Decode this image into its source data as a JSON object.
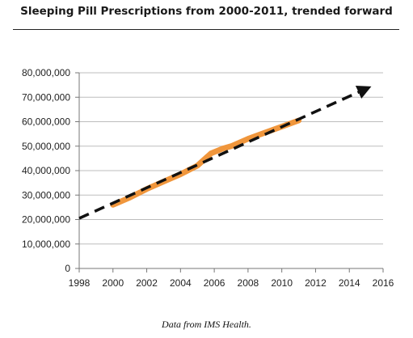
{
  "chart_data": {
    "type": "line",
    "title": "Sleeping Pill Prescriptions from 2000-2011, trended forward",
    "xlabel": "",
    "ylabel": "",
    "xlim": [
      1998,
      2016
    ],
    "ylim": [
      0,
      80000000
    ],
    "x_ticks": [
      1998,
      2000,
      2002,
      2004,
      2006,
      2008,
      2010,
      2012,
      2014,
      2016
    ],
    "y_ticks": [
      0,
      10000000,
      20000000,
      30000000,
      40000000,
      50000000,
      60000000,
      70000000,
      80000000
    ],
    "y_tick_labels": [
      "0",
      "10,000,000",
      "20,000,000",
      "30,000,000",
      "40,000,000",
      "50,000,000",
      "60,000,000",
      "70,000,000",
      "80,000,000"
    ],
    "grid": "horizontal",
    "series": [
      {
        "style": "solid",
        "color": "#f0963c",
        "x": [
          2000,
          2001,
          2002,
          2003,
          2004,
          2005,
          2005.8,
          2006.5,
          2007,
          2008,
          2009,
          2010,
          2011
        ],
        "y": [
          26000000,
          29000000,
          32500000,
          35500000,
          38500000,
          42000000,
          47000000,
          49000000,
          50000000,
          53000000,
          55500000,
          58000000,
          60500000
        ]
      },
      {
        "style": "dashed",
        "color": "#111111",
        "arrow": true,
        "x": [
          1998,
          2015
        ],
        "y": [
          20500000,
          73500000
        ]
      }
    ]
  },
  "footer": {
    "source": "Data from IMS Health."
  }
}
